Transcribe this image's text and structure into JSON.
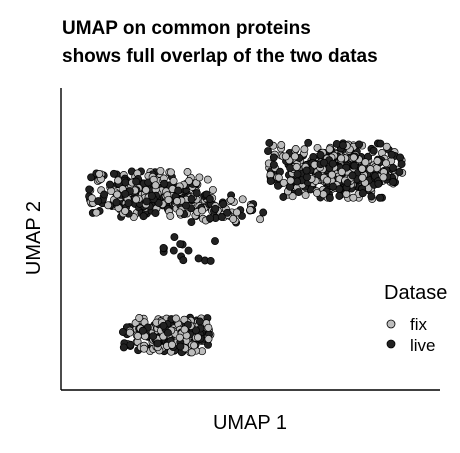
{
  "chart_data": {
    "type": "scatter",
    "title": [
      "UMAP on common proteins",
      "shows full overlap of the two datas"
    ],
    "xlabel": "UMAP 1",
    "ylabel": "UMAP 2",
    "xlim": [
      0,
      10
    ],
    "ylim": [
      0,
      10
    ],
    "grid": false,
    "legend": {
      "title": "Datase",
      "placement": "right",
      "entries": [
        {
          "name": "fix",
          "color": "#bdbdbd"
        },
        {
          "name": "live",
          "color": "#222222"
        }
      ]
    },
    "clusters": [
      {
        "name_hint": "upper-left",
        "cx": 2.3,
        "cy": 6.6,
        "rx": 1.5,
        "ry": 0.7,
        "n": 320
      },
      {
        "name_hint": "bridge",
        "cx": 4.3,
        "cy": 6.1,
        "rx": 0.9,
        "ry": 0.45,
        "n": 55
      },
      {
        "name_hint": "upper-right",
        "cx": 7.3,
        "cy": 7.4,
        "rx": 1.6,
        "ry": 0.85,
        "n": 480
      },
      {
        "name_hint": "lower",
        "cx": 2.7,
        "cy": 1.7,
        "rx": 1.05,
        "ry": 0.55,
        "n": 260
      }
    ],
    "series": [
      {
        "name": "fix",
        "color": "#bdbdbd"
      },
      {
        "name": "live",
        "color": "#222222"
      }
    ]
  }
}
